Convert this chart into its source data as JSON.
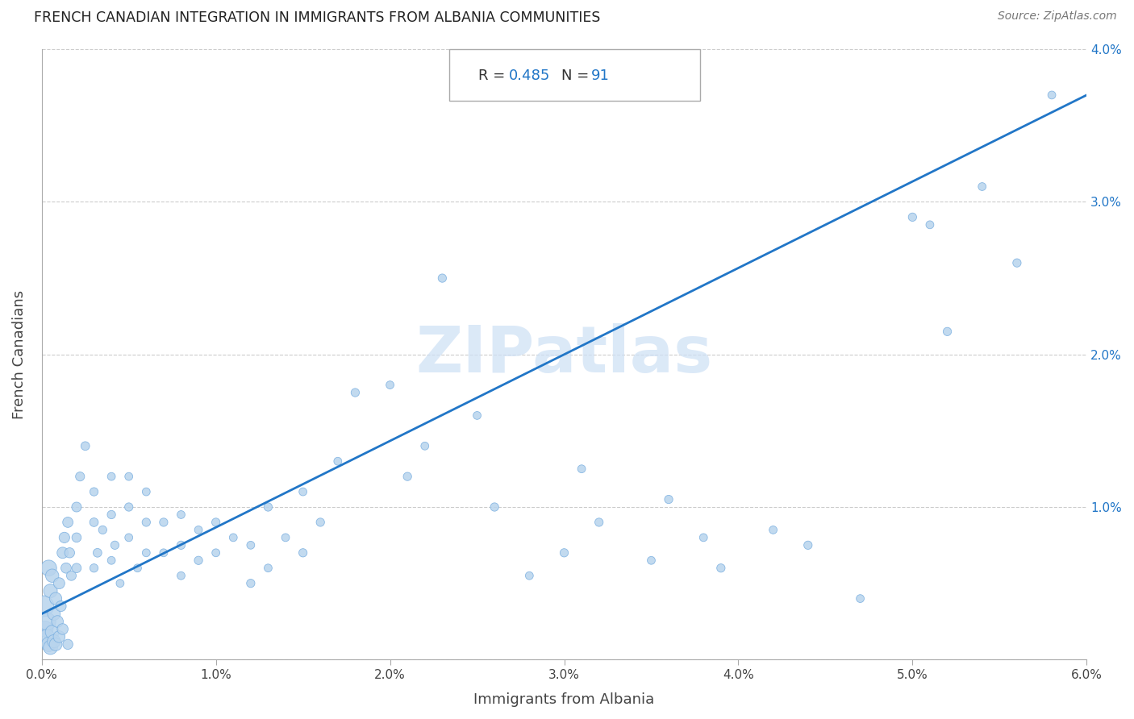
{
  "title": "FRENCH CANADIAN INTEGRATION IN IMMIGRANTS FROM ALBANIA COMMUNITIES",
  "source": "Source: ZipAtlas.com",
  "xlabel": "Immigrants from Albania",
  "ylabel": "French Canadians",
  "R": 0.485,
  "N": 91,
  "xlim": [
    0.0,
    0.06
  ],
  "ylim": [
    0.0,
    0.04
  ],
  "xticks": [
    0.0,
    0.01,
    0.02,
    0.03,
    0.04,
    0.05,
    0.06
  ],
  "xtick_labels": [
    "0.0%",
    "1.0%",
    "2.0%",
    "3.0%",
    "4.0%",
    "5.0%",
    "6.0%"
  ],
  "yticks": [
    0.0,
    0.01,
    0.02,
    0.03,
    0.04
  ],
  "ytick_labels_right": [
    "",
    "1.0%",
    "2.0%",
    "3.0%",
    "4.0%"
  ],
  "watermark": "ZIPatlas",
  "dot_color": "#b8d4ed",
  "dot_edge_color": "#7aafe0",
  "line_color": "#2176c7",
  "line_x0": 0.0,
  "line_y0": 0.003,
  "line_x1": 0.06,
  "line_y1": 0.037,
  "scatter_x": [
    0.0001,
    0.0002,
    0.0003,
    0.0003,
    0.0004,
    0.0004,
    0.0005,
    0.0005,
    0.0006,
    0.0006,
    0.0007,
    0.0007,
    0.0008,
    0.0008,
    0.0009,
    0.001,
    0.001,
    0.0011,
    0.0012,
    0.0012,
    0.0013,
    0.0014,
    0.0015,
    0.0015,
    0.0016,
    0.0017,
    0.002,
    0.002,
    0.002,
    0.0022,
    0.0025,
    0.003,
    0.003,
    0.003,
    0.0032,
    0.0035,
    0.004,
    0.004,
    0.004,
    0.0042,
    0.0045,
    0.005,
    0.005,
    0.005,
    0.0055,
    0.006,
    0.006,
    0.006,
    0.007,
    0.007,
    0.008,
    0.008,
    0.008,
    0.009,
    0.009,
    0.01,
    0.01,
    0.011,
    0.012,
    0.012,
    0.013,
    0.013,
    0.014,
    0.015,
    0.015,
    0.016,
    0.017,
    0.018,
    0.02,
    0.021,
    0.022,
    0.023,
    0.025,
    0.026,
    0.028,
    0.03,
    0.031,
    0.032,
    0.035,
    0.036,
    0.038,
    0.039,
    0.042,
    0.044,
    0.047,
    0.05,
    0.051,
    0.052,
    0.054,
    0.056,
    0.058
  ],
  "scatter_y": [
    0.0035,
    0.002,
    0.0025,
    0.0015,
    0.006,
    0.001,
    0.0045,
    0.0008,
    0.0055,
    0.0018,
    0.003,
    0.0012,
    0.004,
    0.001,
    0.0025,
    0.005,
    0.0015,
    0.0035,
    0.007,
    0.002,
    0.008,
    0.006,
    0.001,
    0.009,
    0.007,
    0.0055,
    0.008,
    0.01,
    0.006,
    0.012,
    0.014,
    0.006,
    0.009,
    0.011,
    0.007,
    0.0085,
    0.0065,
    0.0095,
    0.012,
    0.0075,
    0.005,
    0.008,
    0.01,
    0.012,
    0.006,
    0.007,
    0.009,
    0.011,
    0.007,
    0.009,
    0.0055,
    0.0075,
    0.0095,
    0.0065,
    0.0085,
    0.007,
    0.009,
    0.008,
    0.005,
    0.0075,
    0.006,
    0.01,
    0.008,
    0.007,
    0.011,
    0.009,
    0.013,
    0.0175,
    0.018,
    0.012,
    0.014,
    0.025,
    0.016,
    0.01,
    0.0055,
    0.007,
    0.0125,
    0.009,
    0.0065,
    0.0105,
    0.008,
    0.006,
    0.0085,
    0.0075,
    0.004,
    0.029,
    0.0285,
    0.0215,
    0.031,
    0.026,
    0.037
  ],
  "scatter_sizes": [
    350,
    200,
    250,
    180,
    200,
    170,
    150,
    160,
    140,
    150,
    130,
    140,
    120,
    130,
    110,
    100,
    110,
    90,
    100,
    95,
    90,
    85,
    80,
    85,
    80,
    75,
    70,
    75,
    70,
    65,
    60,
    55,
    60,
    55,
    60,
    55,
    50,
    55,
    50,
    55,
    50,
    50,
    55,
    50,
    50,
    50,
    55,
    50,
    50,
    55,
    50,
    55,
    50,
    55,
    50,
    50,
    55,
    50,
    55,
    50,
    50,
    55,
    50,
    55,
    50,
    55,
    50,
    55,
    50,
    55,
    50,
    55,
    50,
    55,
    50,
    55,
    50,
    55,
    50,
    55,
    50,
    55,
    50,
    55,
    50,
    55,
    50,
    55,
    50,
    55,
    50
  ]
}
